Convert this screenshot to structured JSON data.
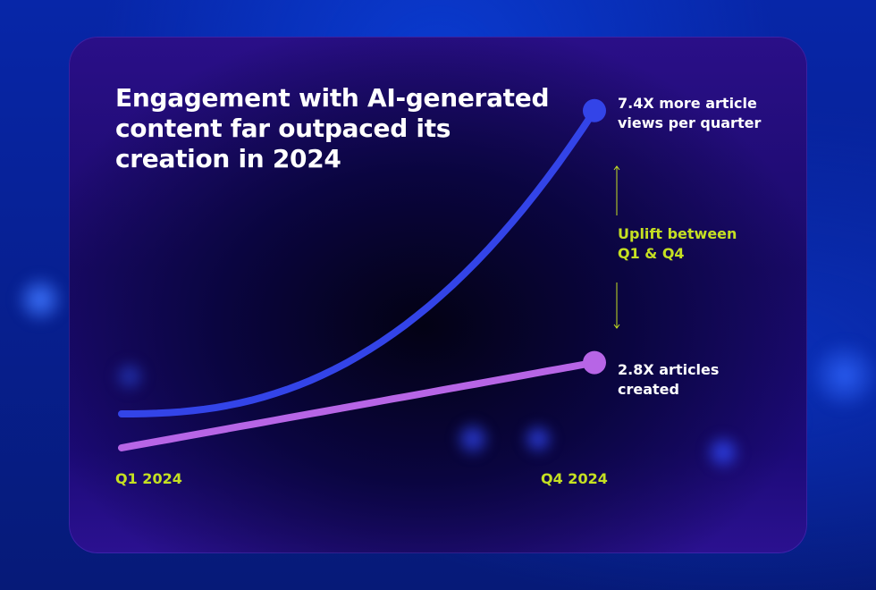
{
  "chart_data": {
    "type": "line",
    "title": "Engagement with AI-generated content far outpaced its creation in 2024",
    "x": [
      "Q1 2024",
      "Q4 2024"
    ],
    "series": [
      {
        "name": "",
        "values": [
          1,
          7.4
        ],
        "end_label": "7.4X more article views per quarter",
        "color": "#3344e8"
      },
      {
        "name": "",
        "values": [
          1,
          2.8
        ],
        "end_label": "2.8X articles created",
        "color": "#b765e6"
      }
    ],
    "annotation": "Uplift between Q1 & Q4",
    "xlabel": "",
    "ylabel": "",
    "grid": false,
    "legend": "none"
  },
  "colors": {
    "accent_label": "#c5e022",
    "views_line": "#3344e8",
    "articles_line": "#b765e6"
  }
}
